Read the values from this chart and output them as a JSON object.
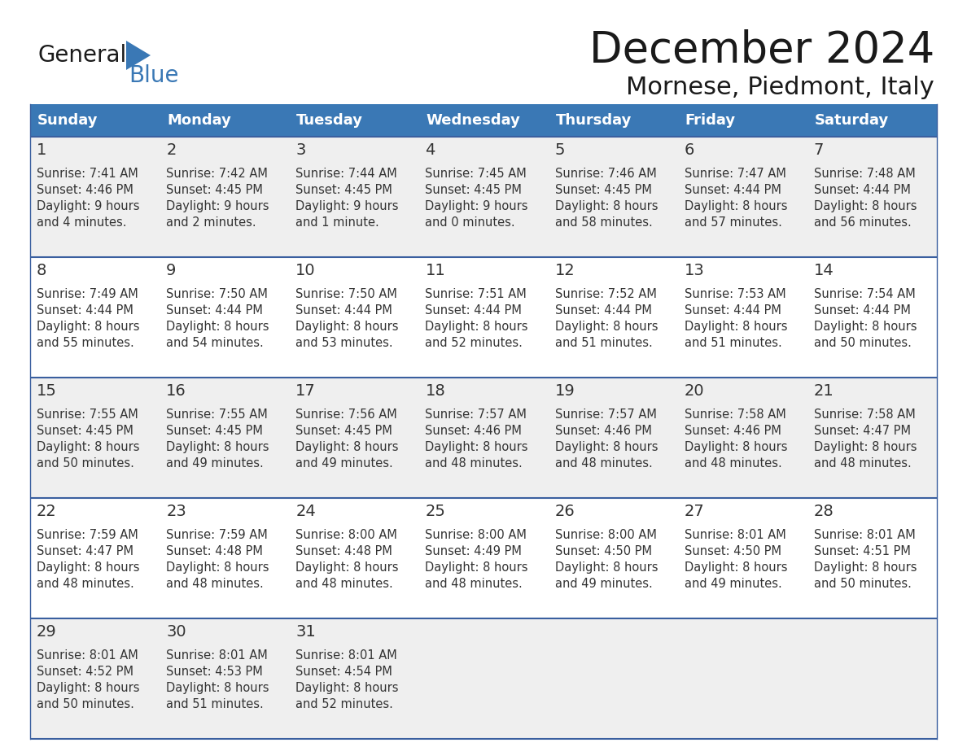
{
  "title": "December 2024",
  "subtitle": "Mornese, Piedmont, Italy",
  "days_of_week": [
    "Sunday",
    "Monday",
    "Tuesday",
    "Wednesday",
    "Thursday",
    "Friday",
    "Saturday"
  ],
  "header_bg": "#3A78B5",
  "header_text": "#FFFFFF",
  "row_bg_odd": "#EFEFEF",
  "row_bg_even": "#FFFFFF",
  "border_color": "#3A5F9F",
  "text_color": "#333333",
  "title_color": "#1a1a1a",
  "calendar_data": [
    [
      {
        "day": "1",
        "sunrise": "7:41 AM",
        "sunset": "4:46 PM",
        "daylight_line1": "9 hours",
        "daylight_line2": "and 4 minutes."
      },
      {
        "day": "2",
        "sunrise": "7:42 AM",
        "sunset": "4:45 PM",
        "daylight_line1": "9 hours",
        "daylight_line2": "and 2 minutes."
      },
      {
        "day": "3",
        "sunrise": "7:44 AM",
        "sunset": "4:45 PM",
        "daylight_line1": "9 hours",
        "daylight_line2": "and 1 minute."
      },
      {
        "day": "4",
        "sunrise": "7:45 AM",
        "sunset": "4:45 PM",
        "daylight_line1": "9 hours",
        "daylight_line2": "and 0 minutes."
      },
      {
        "day": "5",
        "sunrise": "7:46 AM",
        "sunset": "4:45 PM",
        "daylight_line1": "8 hours",
        "daylight_line2": "and 58 minutes."
      },
      {
        "day": "6",
        "sunrise": "7:47 AM",
        "sunset": "4:44 PM",
        "daylight_line1": "8 hours",
        "daylight_line2": "and 57 minutes."
      },
      {
        "day": "7",
        "sunrise": "7:48 AM",
        "sunset": "4:44 PM",
        "daylight_line1": "8 hours",
        "daylight_line2": "and 56 minutes."
      }
    ],
    [
      {
        "day": "8",
        "sunrise": "7:49 AM",
        "sunset": "4:44 PM",
        "daylight_line1": "8 hours",
        "daylight_line2": "and 55 minutes."
      },
      {
        "day": "9",
        "sunrise": "7:50 AM",
        "sunset": "4:44 PM",
        "daylight_line1": "8 hours",
        "daylight_line2": "and 54 minutes."
      },
      {
        "day": "10",
        "sunrise": "7:50 AM",
        "sunset": "4:44 PM",
        "daylight_line1": "8 hours",
        "daylight_line2": "and 53 minutes."
      },
      {
        "day": "11",
        "sunrise": "7:51 AM",
        "sunset": "4:44 PM",
        "daylight_line1": "8 hours",
        "daylight_line2": "and 52 minutes."
      },
      {
        "day": "12",
        "sunrise": "7:52 AM",
        "sunset": "4:44 PM",
        "daylight_line1": "8 hours",
        "daylight_line2": "and 51 minutes."
      },
      {
        "day": "13",
        "sunrise": "7:53 AM",
        "sunset": "4:44 PM",
        "daylight_line1": "8 hours",
        "daylight_line2": "and 51 minutes."
      },
      {
        "day": "14",
        "sunrise": "7:54 AM",
        "sunset": "4:44 PM",
        "daylight_line1": "8 hours",
        "daylight_line2": "and 50 minutes."
      }
    ],
    [
      {
        "day": "15",
        "sunrise": "7:55 AM",
        "sunset": "4:45 PM",
        "daylight_line1": "8 hours",
        "daylight_line2": "and 50 minutes."
      },
      {
        "day": "16",
        "sunrise": "7:55 AM",
        "sunset": "4:45 PM",
        "daylight_line1": "8 hours",
        "daylight_line2": "and 49 minutes."
      },
      {
        "day": "17",
        "sunrise": "7:56 AM",
        "sunset": "4:45 PM",
        "daylight_line1": "8 hours",
        "daylight_line2": "and 49 minutes."
      },
      {
        "day": "18",
        "sunrise": "7:57 AM",
        "sunset": "4:46 PM",
        "daylight_line1": "8 hours",
        "daylight_line2": "and 48 minutes."
      },
      {
        "day": "19",
        "sunrise": "7:57 AM",
        "sunset": "4:46 PM",
        "daylight_line1": "8 hours",
        "daylight_line2": "and 48 minutes."
      },
      {
        "day": "20",
        "sunrise": "7:58 AM",
        "sunset": "4:46 PM",
        "daylight_line1": "8 hours",
        "daylight_line2": "and 48 minutes."
      },
      {
        "day": "21",
        "sunrise": "7:58 AM",
        "sunset": "4:47 PM",
        "daylight_line1": "8 hours",
        "daylight_line2": "and 48 minutes."
      }
    ],
    [
      {
        "day": "22",
        "sunrise": "7:59 AM",
        "sunset": "4:47 PM",
        "daylight_line1": "8 hours",
        "daylight_line2": "and 48 minutes."
      },
      {
        "day": "23",
        "sunrise": "7:59 AM",
        "sunset": "4:48 PM",
        "daylight_line1": "8 hours",
        "daylight_line2": "and 48 minutes."
      },
      {
        "day": "24",
        "sunrise": "8:00 AM",
        "sunset": "4:48 PM",
        "daylight_line1": "8 hours",
        "daylight_line2": "and 48 minutes."
      },
      {
        "day": "25",
        "sunrise": "8:00 AM",
        "sunset": "4:49 PM",
        "daylight_line1": "8 hours",
        "daylight_line2": "and 48 minutes."
      },
      {
        "day": "26",
        "sunrise": "8:00 AM",
        "sunset": "4:50 PM",
        "daylight_line1": "8 hours",
        "daylight_line2": "and 49 minutes."
      },
      {
        "day": "27",
        "sunrise": "8:01 AM",
        "sunset": "4:50 PM",
        "daylight_line1": "8 hours",
        "daylight_line2": "and 49 minutes."
      },
      {
        "day": "28",
        "sunrise": "8:01 AM",
        "sunset": "4:51 PM",
        "daylight_line1": "8 hours",
        "daylight_line2": "and 50 minutes."
      }
    ],
    [
      {
        "day": "29",
        "sunrise": "8:01 AM",
        "sunset": "4:52 PM",
        "daylight_line1": "8 hours",
        "daylight_line2": "and 50 minutes."
      },
      {
        "day": "30",
        "sunrise": "8:01 AM",
        "sunset": "4:53 PM",
        "daylight_line1": "8 hours",
        "daylight_line2": "and 51 minutes."
      },
      {
        "day": "31",
        "sunrise": "8:01 AM",
        "sunset": "4:54 PM",
        "daylight_line1": "8 hours",
        "daylight_line2": "and 52 minutes."
      },
      null,
      null,
      null,
      null
    ]
  ],
  "logo_general_color": "#1a1a1a",
  "logo_blue_color": "#3A78B5",
  "logo_triangle_color": "#3A78B5"
}
